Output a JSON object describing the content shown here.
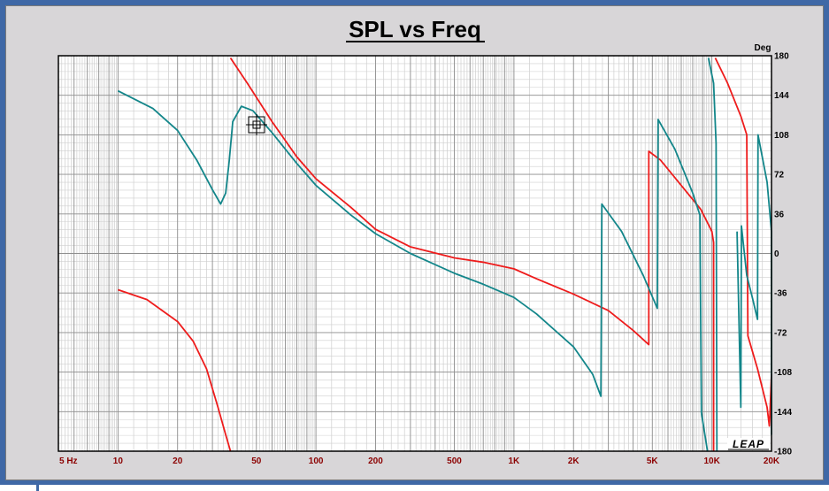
{
  "chart_data": {
    "type": "line",
    "title": "SPL vs Freq",
    "y_unit_label": "Deg",
    "x_scale": "log",
    "xlim": [
      5,
      20000
    ],
    "ylim": [
      -180,
      180
    ],
    "grid": true,
    "x_tick_labels": [
      {
        "value": 5,
        "label": "5  Hz"
      },
      {
        "value": 10,
        "label": "10"
      },
      {
        "value": 20,
        "label": "20"
      },
      {
        "value": 50,
        "label": "50"
      },
      {
        "value": 100,
        "label": "100"
      },
      {
        "value": 200,
        "label": "200"
      },
      {
        "value": 500,
        "label": "500"
      },
      {
        "value": 1000,
        "label": "1K"
      },
      {
        "value": 2000,
        "label": "2K"
      },
      {
        "value": 5000,
        "label": "5K"
      },
      {
        "value": 10000,
        "label": "10K"
      },
      {
        "value": 20000,
        "label": "20K"
      }
    ],
    "y_tick_labels": [
      {
        "value": 180,
        "label": "180"
      },
      {
        "value": 144,
        "label": "144"
      },
      {
        "value": 108,
        "label": "108"
      },
      {
        "value": 72,
        "label": "72"
      },
      {
        "value": 36,
        "label": "36"
      },
      {
        "value": 0,
        "label": "0"
      },
      {
        "value": -36,
        "label": "-36"
      },
      {
        "value": -72,
        "label": "-72"
      },
      {
        "value": -108,
        "label": "-108"
      },
      {
        "value": -144,
        "label": "-144"
      },
      {
        "value": -180,
        "label": "-180"
      }
    ],
    "series": [
      {
        "color": "#ee1c1c",
        "points": [
          [
            10,
            -33
          ],
          [
            14,
            -42
          ],
          [
            20,
            -62
          ],
          [
            24,
            -80
          ],
          [
            28,
            -105
          ],
          [
            32,
            -140
          ],
          [
            35,
            -165
          ],
          [
            37,
            -180
          ],
          null,
          [
            37,
            178
          ],
          [
            45,
            155
          ],
          [
            60,
            120
          ],
          [
            80,
            88
          ],
          [
            100,
            68
          ],
          [
            150,
            42
          ],
          [
            200,
            22
          ],
          [
            300,
            6
          ],
          [
            500,
            -4
          ],
          [
            700,
            -8
          ],
          [
            1000,
            -14
          ],
          [
            1300,
            -23
          ],
          [
            2000,
            -37
          ],
          [
            3000,
            -52
          ],
          [
            4000,
            -70
          ],
          [
            4800,
            -83
          ],
          [
            4800,
            93
          ],
          [
            5500,
            85
          ],
          [
            7000,
            62
          ],
          [
            8800,
            40
          ],
          [
            10000,
            20
          ],
          [
            10200,
            10
          ],
          [
            10200,
            -180
          ],
          null,
          [
            10400,
            178
          ],
          [
            12000,
            155
          ],
          [
            14000,
            125
          ],
          [
            15000,
            108
          ],
          [
            15200,
            -75
          ],
          [
            17000,
            -105
          ],
          [
            19000,
            -140
          ],
          [
            19500,
            -157
          ],
          [
            19600,
            -150
          ],
          [
            20000,
            -110
          ]
        ]
      },
      {
        "color": "#13868a",
        "points": [
          [
            10,
            148
          ],
          [
            15,
            132
          ],
          [
            20,
            112
          ],
          [
            25,
            85
          ],
          [
            30,
            58
          ],
          [
            33,
            45
          ],
          [
            35,
            55
          ],
          [
            36.5,
            85
          ],
          [
            38,
            120
          ],
          [
            42,
            134
          ],
          [
            48,
            130
          ],
          [
            60,
            110
          ],
          [
            80,
            82
          ],
          [
            100,
            62
          ],
          [
            150,
            35
          ],
          [
            200,
            18
          ],
          [
            300,
            0
          ],
          [
            500,
            -18
          ],
          [
            700,
            -28
          ],
          [
            1000,
            -40
          ],
          [
            1300,
            -55
          ],
          [
            2000,
            -85
          ],
          [
            2500,
            -110
          ],
          [
            2750,
            -130
          ],
          [
            2780,
            45
          ],
          [
            3500,
            20
          ],
          [
            4500,
            -20
          ],
          [
            5300,
            -50
          ],
          [
            5350,
            122
          ],
          [
            6500,
            95
          ],
          [
            8000,
            55
          ],
          [
            8700,
            35
          ],
          [
            8850,
            -145
          ],
          [
            9500,
            -180
          ],
          null,
          [
            9600,
            178
          ],
          [
            10200,
            155
          ],
          [
            10500,
            100
          ],
          [
            10600,
            -180
          ],
          null,
          [
            13400,
            20
          ],
          [
            14000,
            -140
          ],
          [
            14100,
            25
          ],
          [
            15000,
            -20
          ],
          [
            16000,
            -40
          ],
          [
            17000,
            -60
          ],
          [
            17100,
            108
          ],
          [
            19000,
            65
          ],
          [
            20000,
            20
          ],
          [
            20000,
            -165
          ]
        ]
      }
    ]
  },
  "logo": {
    "text": "LEAP"
  }
}
